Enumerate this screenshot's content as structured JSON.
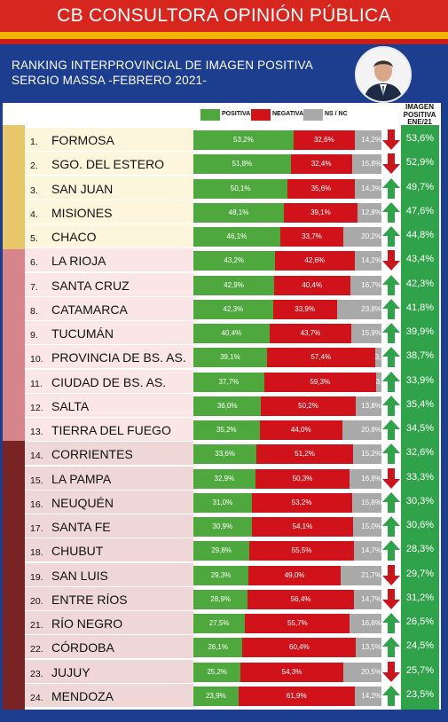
{
  "header": {
    "title": "CB CONSULTORA OPINIÓN PÚBLICA",
    "subtitle_line1": "RANKING INTERPROVINCIAL DE IMAGEN POSITIVA",
    "subtitle_line2": "SERGIO MASSA -FEBRERO 2021-"
  },
  "legend": {
    "positive": "POSITIVA",
    "negative": "NEGATIVA",
    "nsnc": "NS / NC",
    "prev_header_line1": "IMAGEN",
    "prev_header_line2": "POSITIVA",
    "prev_header_line3": "ENE/21"
  },
  "colors": {
    "positive": "#4fa83d",
    "negative": "#d0131b",
    "nsnc": "#a9a9a9",
    "arrow_up": "#2fa24a",
    "arrow_down": "#c8161c",
    "header_red": "#d7261e",
    "header_blue": "#1d3e8e",
    "tier1": "#e8c66a",
    "tier2": "#d6868a",
    "tier3": "#7a2426"
  },
  "chart_data": {
    "type": "bar",
    "stacked": true,
    "orientation": "horizontal",
    "title": "RANKING INTERPROVINCIAL DE IMAGEN POSITIVA",
    "series": [
      {
        "name": "POSITIVA",
        "values": [
          53.2,
          51.8,
          50.1,
          48.1,
          46.1,
          43.2,
          42.9,
          42.3,
          40.4,
          39.1,
          37.7,
          36.0,
          35.2,
          33.6,
          32.9,
          31.0,
          30.9,
          29.8,
          29.3,
          28.9,
          27.5,
          26.1,
          25.2,
          23.9
        ]
      },
      {
        "name": "NEGATIVA",
        "values": [
          32.6,
          32.4,
          35.6,
          39.1,
          33.7,
          42.6,
          40.4,
          33.9,
          43.7,
          57.4,
          59.3,
          50.2,
          44.0,
          51.2,
          50.3,
          53.2,
          54.1,
          55.5,
          49.0,
          56.4,
          55.7,
          60.4,
          54.3,
          61.9
        ]
      },
      {
        "name": "NS / NC",
        "values": [
          14.2,
          15.8,
          14.3,
          12.8,
          20.2,
          14.2,
          16.7,
          23.8,
          15.9,
          3.5,
          3.0,
          13.8,
          20.8,
          15.2,
          16.8,
          15.8,
          15.0,
          14.7,
          21.7,
          14.7,
          16.8,
          13.5,
          20.5,
          14.2
        ]
      }
    ],
    "rows": [
      {
        "rank": "1.",
        "province": "FORMOSA",
        "pos": "53,2%",
        "neg": "32,6%",
        "nsnc": "14,2%",
        "trend": "down",
        "prev": "53,6%",
        "tier": 1
      },
      {
        "rank": "2.",
        "province": "SGO. DEL ESTERO",
        "pos": "51,8%",
        "neg": "32,4%",
        "nsnc": "15,8%",
        "trend": "down",
        "prev": "52,9%",
        "tier": 1
      },
      {
        "rank": "3.",
        "province": "SAN JUAN",
        "pos": "50,1%",
        "neg": "35,6%",
        "nsnc": "14,3%",
        "trend": "up",
        "prev": "49,7%",
        "tier": 1
      },
      {
        "rank": "4.",
        "province": "MISIONES",
        "pos": "48,1%",
        "neg": "39,1%",
        "nsnc": "12,8%",
        "trend": "up",
        "prev": "47,6%",
        "tier": 1
      },
      {
        "rank": "5.",
        "province": "CHACO",
        "pos": "46,1%",
        "neg": "33,7%",
        "nsnc": "20,2%",
        "trend": "up",
        "prev": "44,8%",
        "tier": 1
      },
      {
        "rank": "6.",
        "province": "LA RIOJA",
        "pos": "43,2%",
        "neg": "42,6%",
        "nsnc": "14,2%",
        "trend": "down",
        "prev": "43,4%",
        "tier": 2
      },
      {
        "rank": "7.",
        "province": "SANTA CRUZ",
        "pos": "42,9%",
        "neg": "40,4%",
        "nsnc": "16,7%",
        "trend": "up",
        "prev": "42,3%",
        "tier": 2
      },
      {
        "rank": "8.",
        "province": "CATAMARCA",
        "pos": "42,3%",
        "neg": "33,9%",
        "nsnc": "23,8%",
        "trend": "up",
        "prev": "41,8%",
        "tier": 2
      },
      {
        "rank": "9.",
        "province": "TUCUMÁN",
        "pos": "40,4%",
        "neg": "43,7%",
        "nsnc": "15,9%",
        "trend": "up",
        "prev": "39,9%",
        "tier": 2
      },
      {
        "rank": "10.",
        "province": "PROVINCIA DE BS. AS.",
        "pos": "39,1%",
        "neg": "57,4%",
        "nsnc": "3,5",
        "trend": "up",
        "prev": "38,7%",
        "tier": 2
      },
      {
        "rank": "11.",
        "province": "CIUDAD DE BS. AS.",
        "pos": "37,7%",
        "neg": "59,3%",
        "nsnc": "3,0",
        "trend": "up",
        "prev": "33,9%",
        "tier": 2
      },
      {
        "rank": "12.",
        "province": "SALTA",
        "pos": "36,0%",
        "neg": "50,2%",
        "nsnc": "13,8%",
        "trend": "up",
        "prev": "35,4%",
        "tier": 2
      },
      {
        "rank": "13.",
        "province": "TIERRA DEL FUEGO",
        "pos": "35,2%",
        "neg": "44,0%",
        "nsnc": "20,8%",
        "trend": "up",
        "prev": "34,5%",
        "tier": 2
      },
      {
        "rank": "14.",
        "province": "CORRIENTES",
        "pos": "33,6%",
        "neg": "51,2%",
        "nsnc": "15,2%",
        "trend": "up",
        "prev": "32,6%",
        "tier": 3
      },
      {
        "rank": "15.",
        "province": "LA PAMPA",
        "pos": "32,9%",
        "neg": "50,3%",
        "nsnc": "16,8%",
        "trend": "down",
        "prev": "33,3%",
        "tier": 3
      },
      {
        "rank": "16.",
        "province": "NEUQUÉN",
        "pos": "31,0%",
        "neg": "53,2%",
        "nsnc": "15,8%",
        "trend": "up",
        "prev": "30,3%",
        "tier": 3
      },
      {
        "rank": "17.",
        "province": "SANTA FE",
        "pos": "30,9%",
        "neg": "54,1%",
        "nsnc": "15,0%",
        "trend": "up",
        "prev": "30,6%",
        "tier": 3
      },
      {
        "rank": "18.",
        "province": "CHUBUT",
        "pos": "29,8%",
        "neg": "55,5%",
        "nsnc": "14,7%",
        "trend": "up",
        "prev": "28,3%",
        "tier": 3
      },
      {
        "rank": "19.",
        "province": "SAN LUIS",
        "pos": "29,3%",
        "neg": "49,0%",
        "nsnc": "21,7%",
        "trend": "down",
        "prev": "29,7%",
        "tier": 3
      },
      {
        "rank": "20.",
        "province": "ENTRE RÍOS",
        "pos": "28,9%",
        "neg": "56,4%",
        "nsnc": "14,7%",
        "trend": "down",
        "prev": "31,2%",
        "tier": 3
      },
      {
        "rank": "21.",
        "province": "RÍO NEGRO",
        "pos": "27,5%",
        "neg": "55,7%",
        "nsnc": "16,8%",
        "trend": "up",
        "prev": "26,5%",
        "tier": 3
      },
      {
        "rank": "22.",
        "province": "CÓRDOBA",
        "pos": "26,1%",
        "neg": "60,4%",
        "nsnc": "13,5%",
        "trend": "up",
        "prev": "24,5%",
        "tier": 3
      },
      {
        "rank": "23.",
        "province": "JUJUY",
        "pos": "25,2%",
        "neg": "54,3%",
        "nsnc": "20,5%",
        "trend": "down",
        "prev": "25,7%",
        "tier": 3
      },
      {
        "rank": "24.",
        "province": "MENDOZA",
        "pos": "23,9%",
        "neg": "61,9%",
        "nsnc": "14,2%",
        "trend": "up",
        "prev": "23,5%",
        "tier": 3
      }
    ]
  }
}
